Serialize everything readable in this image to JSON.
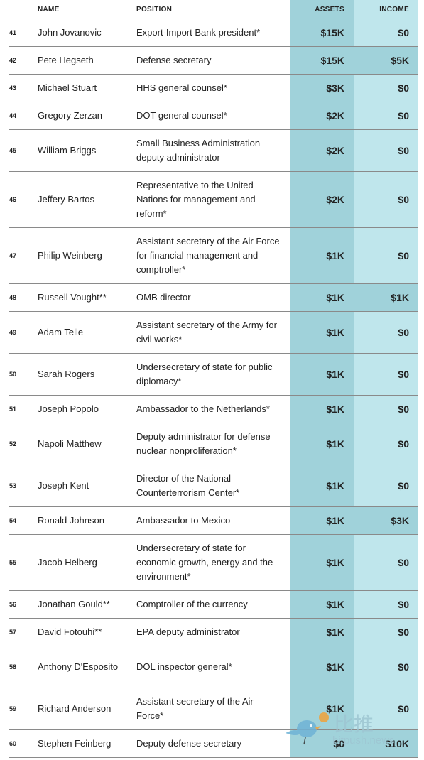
{
  "headers": {
    "name": "NAME",
    "position": "POSITION",
    "assets": "ASSETS",
    "income": "INCOME"
  },
  "rows": [
    {
      "num": "41",
      "name": "John Jovanovic",
      "position": "Export-Import Bank president*",
      "assets": "$15K",
      "income": "$0",
      "income_highlight": false
    },
    {
      "num": "42",
      "name": "Pete Hegseth",
      "position": "Defense secretary",
      "assets": "$15K",
      "income": "$5K",
      "income_highlight": true
    },
    {
      "num": "43",
      "name": "Michael Stuart",
      "position": "HHS general counsel*",
      "assets": "$3K",
      "income": "$0",
      "income_highlight": false
    },
    {
      "num": "44",
      "name": "Gregory Zerzan",
      "position": "DOT general counsel*",
      "assets": "$2K",
      "income": "$0",
      "income_highlight": false
    },
    {
      "num": "45",
      "name": "William Briggs",
      "position": "Small Business Administration deputy administrator",
      "assets": "$2K",
      "income": "$0",
      "income_highlight": false
    },
    {
      "num": "46",
      "name": "Jeffery Bartos",
      "position": "Representative to the United Nations for management and reform*",
      "assets": "$2K",
      "income": "$0",
      "income_highlight": false
    },
    {
      "num": "47",
      "name": "Philip Weinberg",
      "position": "Assistant secretary of the Air Force for financial management and comptroller*",
      "assets": "$1K",
      "income": "$0",
      "income_highlight": false
    },
    {
      "num": "48",
      "name": "Russell Vought**",
      "position": "OMB director",
      "assets": "$1K",
      "income": "$1K",
      "income_highlight": true
    },
    {
      "num": "49",
      "name": "Adam Telle",
      "position": "Assistant secretary of the Army for civil works*",
      "assets": "$1K",
      "income": "$0",
      "income_highlight": false
    },
    {
      "num": "50",
      "name": "Sarah Rogers",
      "position": "Undersecretary of state for public diplomacy*",
      "assets": "$1K",
      "income": "$0",
      "income_highlight": false
    },
    {
      "num": "51",
      "name": "Joseph Popolo",
      "position": "Ambassador to the Netherlands*",
      "assets": "$1K",
      "income": "$0",
      "income_highlight": false
    },
    {
      "num": "52",
      "name": "Napoli Matthew",
      "position": "Deputy administrator for defense nuclear nonproliferation*",
      "assets": "$1K",
      "income": "$0",
      "income_highlight": false
    },
    {
      "num": "53",
      "name": "Joseph Kent",
      "position": "Director of the National Counterterrorism Center*",
      "assets": "$1K",
      "income": "$0",
      "income_highlight": false
    },
    {
      "num": "54",
      "name": "Ronald Johnson",
      "position": "Ambassador to Mexico",
      "assets": "$1K",
      "income": "$3K",
      "income_highlight": true
    },
    {
      "num": "55",
      "name": "Jacob Helberg",
      "position": "Undersecretary of state for economic growth, energy and the environment*",
      "assets": "$1K",
      "income": "$0",
      "income_highlight": false
    },
    {
      "num": "56",
      "name": "Jonathan Gould**",
      "position": "Comptroller of the currency",
      "assets": "$1K",
      "income": "$0",
      "income_highlight": false
    },
    {
      "num": "57",
      "name": "David Fotouhi**",
      "position": "EPA deputy administrator",
      "assets": "$1K",
      "income": "$0",
      "income_highlight": false
    },
    {
      "num": "58",
      "name": "Anthony D'Esposito",
      "position": "DOL inspector general*",
      "assets": "$1K",
      "income": "$0",
      "income_highlight": false
    },
    {
      "num": "59",
      "name": "Richard Anderson",
      "position": "Assistant secretary of the Air Force*",
      "assets": "$1K",
      "income": "$0",
      "income_highlight": false
    },
    {
      "num": "60",
      "name": "Stephen Feinberg",
      "position": "Deputy defense secretary",
      "assets": "$0",
      "income": "$10K",
      "income_highlight": true
    }
  ],
  "watermark": {
    "text": "比推",
    "url": "bitpush.news"
  }
}
